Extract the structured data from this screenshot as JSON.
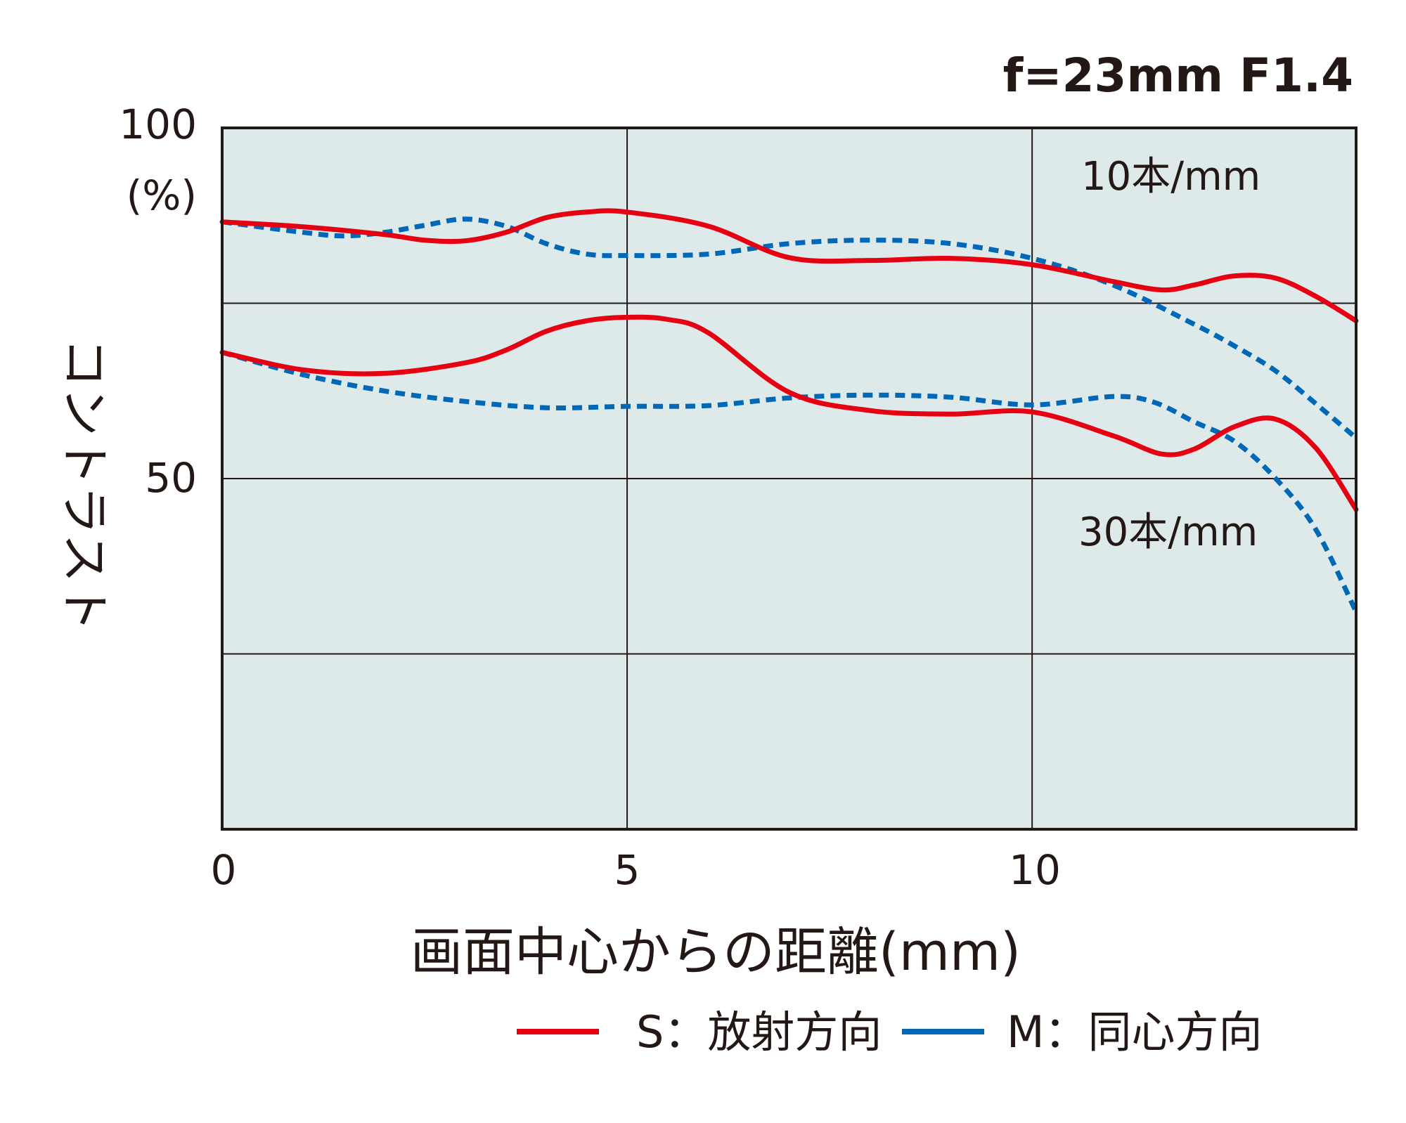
{
  "chart_data": {
    "type": "line",
    "title": "f=23mm F1.4",
    "xlabel": "画面中心からの距離(mm)",
    "ylabel": "コントラスト",
    "y_unit": "(%)",
    "xlim": [
      0,
      14
    ],
    "ylim": [
      0,
      100
    ],
    "x_ticks": [
      "0",
      "5",
      "10"
    ],
    "y_ticks": [
      "100",
      "50"
    ],
    "grid": true,
    "background": "#deeaea",
    "legend_position": "bottom-right",
    "annotations": [
      "10本/mm",
      "30本/mm"
    ],
    "colors": {
      "S": "#e50012",
      "M": "#0068b7"
    },
    "legend": [
      {
        "key": "S",
        "label": "S：放射方向",
        "style": "solid"
      },
      {
        "key": "M",
        "label": "M：同心方向",
        "style": "dashed"
      }
    ],
    "series": [
      {
        "key": "S",
        "group": "10本/mm",
        "style": "solid",
        "x": [
          0,
          1,
          2,
          2.5,
          3,
          3.5,
          4,
          4.5,
          5,
          6,
          7,
          8,
          9,
          10,
          11,
          11.6,
          12,
          12.5,
          13,
          13.5,
          14
        ],
        "y": [
          86.6,
          85.9,
          84.8,
          84.0,
          83.9,
          85.1,
          87.2,
          88.0,
          88.0,
          86.0,
          81.5,
          81.1,
          81.4,
          80.5,
          78.1,
          76.9,
          77.6,
          78.9,
          78.6,
          76.0,
          72.5
        ]
      },
      {
        "key": "M",
        "group": "10本/mm",
        "style": "dashed",
        "x": [
          0,
          1,
          1.5,
          2,
          2.5,
          3,
          3.5,
          4,
          4.5,
          5,
          6,
          7,
          8,
          9,
          10,
          11,
          12,
          12.5,
          13,
          13.5,
          14
        ],
        "y": [
          86.6,
          85.1,
          84.6,
          85.1,
          86.1,
          87.0,
          86.0,
          83.5,
          82.0,
          81.8,
          82.0,
          83.5,
          84.0,
          83.5,
          81.4,
          77.6,
          72.0,
          68.9,
          65.4,
          60.7,
          55.8
        ]
      },
      {
        "key": "S",
        "group": "30本/mm",
        "style": "solid",
        "x": [
          0,
          1,
          2,
          3,
          3.5,
          4,
          4.5,
          5,
          5.5,
          6,
          7,
          8,
          9,
          10,
          11,
          11.6,
          12,
          12.5,
          13,
          13.5,
          14
        ],
        "y": [
          68.0,
          65.5,
          65.0,
          66.5,
          68.3,
          71.0,
          72.5,
          73.0,
          72.7,
          70.8,
          62.3,
          59.7,
          59.2,
          59.5,
          56.1,
          53.5,
          54.2,
          57.4,
          58.5,
          54.4,
          45.6
        ]
      },
      {
        "key": "M",
        "group": "30本/mm",
        "style": "dashed",
        "x": [
          0,
          1,
          2,
          3,
          4,
          5,
          6,
          7,
          8,
          9,
          10,
          11,
          11.5,
          12,
          12.5,
          13,
          13.5,
          14
        ],
        "y": [
          68.0,
          64.8,
          62.5,
          61.0,
          60.1,
          60.3,
          60.4,
          61.5,
          61.9,
          61.6,
          60.5,
          61.7,
          60.9,
          58.1,
          55.3,
          50.1,
          42.8,
          31.0
        ]
      }
    ]
  }
}
